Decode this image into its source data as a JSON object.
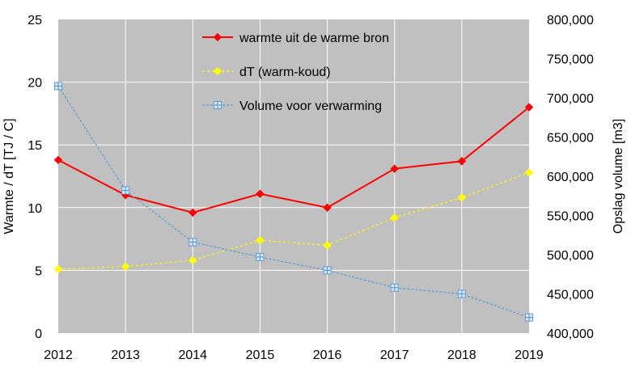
{
  "chart_data": {
    "type": "line",
    "x": [
      "2012",
      "2013",
      "2014",
      "2015",
      "2016",
      "2017",
      "2018",
      "2019"
    ],
    "ylabel": "Warmte / dT  [TJ / C]",
    "y2label": "Opslag volume [m3]",
    "ylim": [
      0,
      25
    ],
    "y2lim": [
      400000,
      800000
    ],
    "yticks": [
      "0",
      "5",
      "10",
      "15",
      "20",
      "25"
    ],
    "y2ticks": [
      "400,000",
      "450,000",
      "500,000",
      "550,000",
      "600,000",
      "650,000",
      "700,000",
      "750,000",
      "800,000"
    ],
    "grid": true,
    "legend_position": "top-center",
    "plot_background": "#c0c0c0",
    "series": [
      {
        "name": "warmte uit de warme bron",
        "axis": "left",
        "color": "#ff0000",
        "marker": "diamond",
        "line": "solid",
        "values": [
          13.8,
          11.0,
          9.6,
          11.1,
          10.0,
          13.1,
          13.7,
          18.0
        ]
      },
      {
        "name": "dT (warm-koud)",
        "axis": "left",
        "color": "#ffff00",
        "marker": "diamond",
        "line": "dotted",
        "values": [
          5.1,
          5.3,
          5.8,
          7.4,
          7.0,
          9.2,
          10.8,
          12.8
        ]
      },
      {
        "name": "Volume voor verwarming",
        "axis": "right",
        "color": "#5b9bd5",
        "marker": "square-plus",
        "line": "dashed",
        "values": [
          715000,
          582000,
          516000,
          497000,
          480000,
          458000,
          450000,
          420000
        ]
      }
    ]
  }
}
